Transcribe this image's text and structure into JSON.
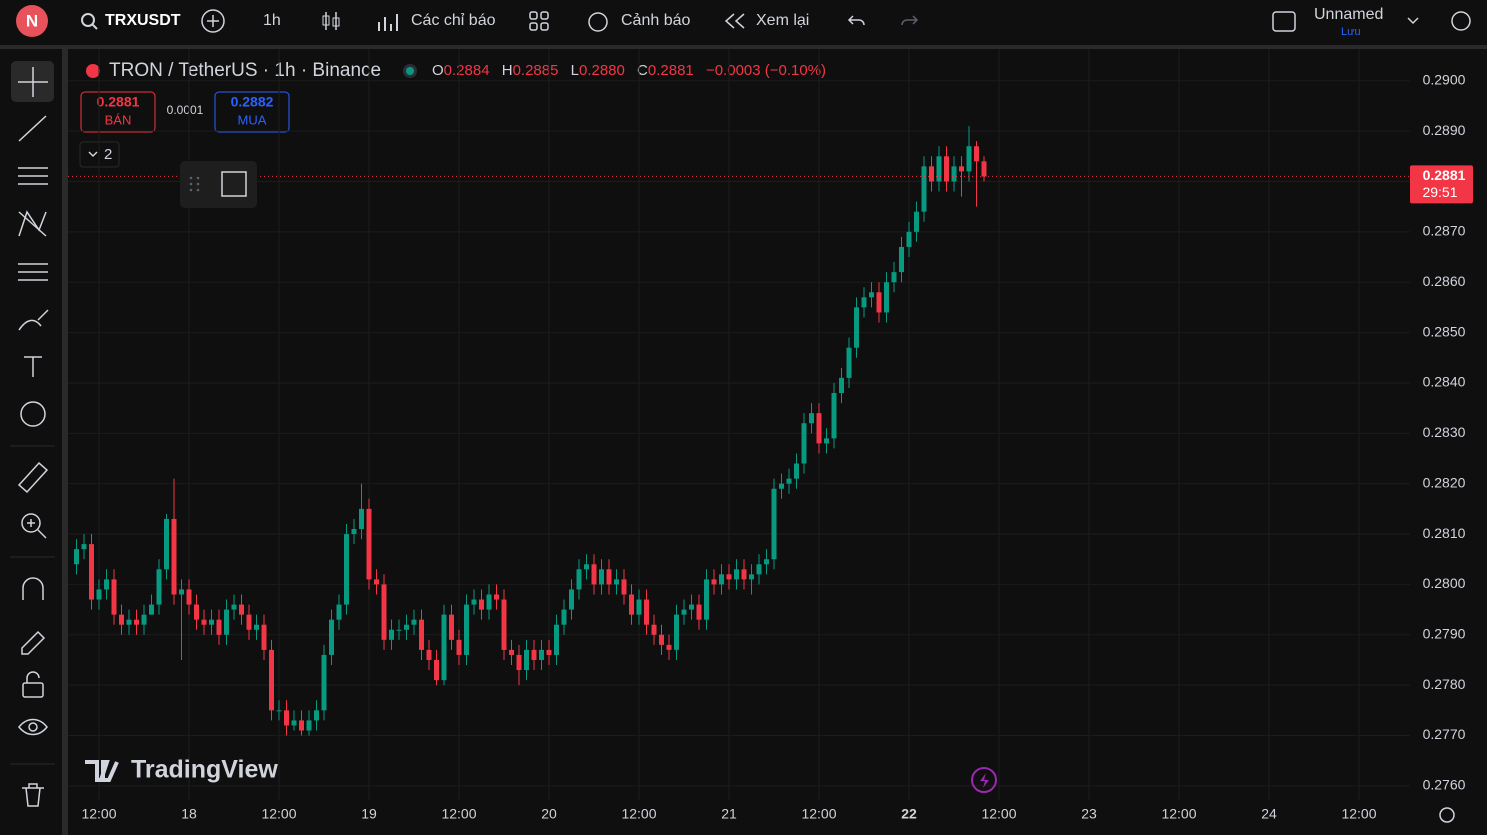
{
  "toolbar": {
    "avatar": "N",
    "symbol": "TRXUSDT",
    "interval": "1h",
    "indicators": "Các chỉ báo",
    "alerts": "Cảnh báo",
    "replay": "Xem lại",
    "layout_name": "Unnamed",
    "save": "Lưu"
  },
  "header": {
    "title": "TRON / TetherUS · 1h · Binance",
    "o_label": "O",
    "o": "0.2884",
    "h_label": "H",
    "h": "0.2885",
    "l_label": "L",
    "l": "0.2880",
    "c_label": "C",
    "c": "0.2881",
    "change": "−0.0003 (−0.10%)"
  },
  "trade": {
    "sell_price": "0.2881",
    "sell": "BÁN",
    "spread": "0.0001",
    "buy_price": "0.2882",
    "buy": "MUA",
    "lots": "2"
  },
  "watermark": "TradingView",
  "chart_data": {
    "type": "candlestick",
    "up_color": "#089981",
    "down_color": "#f23645",
    "grid": true,
    "ylim": [
      0.27572,
      0.29063
    ],
    "yticks": [
      {
        "value": 0.29,
        "label": "0.2900"
      },
      {
        "value": 0.289,
        "label": "0.2890"
      },
      {
        "value": 0.288,
        "label": "0.2880"
      },
      {
        "value": 0.287,
        "label": "0.2870"
      },
      {
        "value": 0.286,
        "label": "0.2860"
      },
      {
        "value": 0.285,
        "label": "0.2850"
      },
      {
        "value": 0.284,
        "label": "0.2840"
      },
      {
        "value": 0.283,
        "label": "0.2830"
      },
      {
        "value": 0.282,
        "label": "0.2820"
      },
      {
        "value": 0.281,
        "label": "0.2810"
      },
      {
        "value": 0.28,
        "label": "0.2800"
      },
      {
        "value": 0.279,
        "label": "0.2790"
      },
      {
        "value": 0.278,
        "label": "0.2780"
      },
      {
        "value": 0.277,
        "label": "0.2770"
      },
      {
        "value": 0.276,
        "label": "0.2760"
      }
    ],
    "xtick_labels": [
      "12:00",
      "18",
      "12:00",
      "19",
      "12:00",
      "20",
      "12:00",
      "21",
      "12:00",
      "22",
      "12:00",
      "23",
      "12:00",
      "24",
      "12:00"
    ],
    "last_price": {
      "value": 0.2881,
      "label": "0.2881",
      "countdown": "29:51"
    },
    "candles": [
      [
        0.2804,
        0.2809,
        0.2802,
        0.2807
      ],
      [
        0.2807,
        0.281,
        0.2805,
        0.2808
      ],
      [
        0.2808,
        0.281,
        0.2795,
        0.2797
      ],
      [
        0.2797,
        0.2801,
        0.2795,
        0.2799
      ],
      [
        0.2799,
        0.2803,
        0.2797,
        0.2801
      ],
      [
        0.2801,
        0.2803,
        0.2792,
        0.2794
      ],
      [
        0.2794,
        0.2796,
        0.279,
        0.2792
      ],
      [
        0.2792,
        0.2795,
        0.279,
        0.2793
      ],
      [
        0.2793,
        0.2795,
        0.279,
        0.2792
      ],
      [
        0.2792,
        0.2796,
        0.279,
        0.2794
      ],
      [
        0.2794,
        0.2798,
        0.2794,
        0.2796
      ],
      [
        0.2796,
        0.2805,
        0.2794,
        0.2803
      ],
      [
        0.2803,
        0.2814,
        0.2801,
        0.2813
      ],
      [
        0.2813,
        0.2821,
        0.2796,
        0.2798
      ],
      [
        0.2798,
        0.2801,
        0.2785,
        0.2799
      ],
      [
        0.2799,
        0.2801,
        0.2794,
        0.2796
      ],
      [
        0.2796,
        0.2798,
        0.2791,
        0.2793
      ],
      [
        0.2793,
        0.2795,
        0.279,
        0.2792
      ],
      [
        0.2792,
        0.2795,
        0.279,
        0.2793
      ],
      [
        0.2793,
        0.2795,
        0.2788,
        0.279
      ],
      [
        0.279,
        0.2797,
        0.2788,
        0.2795
      ],
      [
        0.2795,
        0.2798,
        0.2793,
        0.2796
      ],
      [
        0.2796,
        0.2798,
        0.2792,
        0.2794
      ],
      [
        0.2794,
        0.2796,
        0.2789,
        0.2791
      ],
      [
        0.2791,
        0.2794,
        0.2789,
        0.2792
      ],
      [
        0.2792,
        0.2794,
        0.2785,
        0.2787
      ],
      [
        0.2787,
        0.2789,
        0.2773,
        0.2775
      ],
      [
        0.2775,
        0.2777,
        0.2773,
        0.2775
      ],
      [
        0.2775,
        0.2777,
        0.277,
        0.2772
      ],
      [
        0.2772,
        0.2775,
        0.2771,
        0.2773
      ],
      [
        0.2773,
        0.2775,
        0.277,
        0.2771
      ],
      [
        0.2771,
        0.2775,
        0.277,
        0.2773
      ],
      [
        0.2773,
        0.2777,
        0.2771,
        0.2775
      ],
      [
        0.2775,
        0.2788,
        0.2773,
        0.2786
      ],
      [
        0.2786,
        0.2795,
        0.2784,
        0.2793
      ],
      [
        0.2793,
        0.2798,
        0.2791,
        0.2796
      ],
      [
        0.2796,
        0.2812,
        0.2794,
        0.281
      ],
      [
        0.281,
        0.2813,
        0.2808,
        0.2811
      ],
      [
        0.2811,
        0.282,
        0.2809,
        0.2815
      ],
      [
        0.2815,
        0.2817,
        0.2799,
        0.2801
      ],
      [
        0.2801,
        0.2803,
        0.2798,
        0.28
      ],
      [
        0.28,
        0.2802,
        0.2787,
        0.2789
      ],
      [
        0.2789,
        0.2793,
        0.2787,
        0.2791
      ],
      [
        0.2791,
        0.2793,
        0.2789,
        0.2791
      ],
      [
        0.2791,
        0.2794,
        0.2789,
        0.2792
      ],
      [
        0.2792,
        0.2795,
        0.279,
        0.2793
      ],
      [
        0.2793,
        0.2795,
        0.2785,
        0.2787
      ],
      [
        0.2787,
        0.2789,
        0.2783,
        0.2785
      ],
      [
        0.2785,
        0.2787,
        0.278,
        0.2781
      ],
      [
        0.2781,
        0.2796,
        0.278,
        0.2794
      ],
      [
        0.2794,
        0.2796,
        0.2787,
        0.2789
      ],
      [
        0.2789,
        0.2791,
        0.2784,
        0.2786
      ],
      [
        0.2786,
        0.2798,
        0.2784,
        0.2796
      ],
      [
        0.2796,
        0.2799,
        0.2794,
        0.2797
      ],
      [
        0.2797,
        0.2799,
        0.2793,
        0.2795
      ],
      [
        0.2795,
        0.28,
        0.2793,
        0.2798
      ],
      [
        0.2798,
        0.28,
        0.2795,
        0.2797
      ],
      [
        0.2797,
        0.2799,
        0.2785,
        0.2787
      ],
      [
        0.2787,
        0.2789,
        0.2784,
        0.2786
      ],
      [
        0.2786,
        0.2788,
        0.278,
        0.2783
      ],
      [
        0.2783,
        0.2789,
        0.2781,
        0.2787
      ],
      [
        0.2787,
        0.2789,
        0.2783,
        0.2785
      ],
      [
        0.2785,
        0.2789,
        0.2783,
        0.2787
      ],
      [
        0.2787,
        0.2789,
        0.2784,
        0.2786
      ],
      [
        0.2786,
        0.2794,
        0.2784,
        0.2792
      ],
      [
        0.2792,
        0.2797,
        0.279,
        0.2795
      ],
      [
        0.2795,
        0.2801,
        0.2793,
        0.2799
      ],
      [
        0.2799,
        0.2805,
        0.2797,
        0.2803
      ],
      [
        0.2803,
        0.2806,
        0.2801,
        0.2804
      ],
      [
        0.2804,
        0.2806,
        0.2798,
        0.28
      ],
      [
        0.28,
        0.2805,
        0.2798,
        0.2803
      ],
      [
        0.2803,
        0.2805,
        0.2798,
        0.28
      ],
      [
        0.28,
        0.2803,
        0.2798,
        0.2801
      ],
      [
        0.2801,
        0.2803,
        0.2796,
        0.2798
      ],
      [
        0.2798,
        0.28,
        0.2792,
        0.2794
      ],
      [
        0.2794,
        0.2799,
        0.2792,
        0.2797
      ],
      [
        0.2797,
        0.2799,
        0.279,
        0.2792
      ],
      [
        0.2792,
        0.2794,
        0.2788,
        0.279
      ],
      [
        0.279,
        0.2792,
        0.2786,
        0.2788
      ],
      [
        0.2788,
        0.279,
        0.2785,
        0.2787
      ],
      [
        0.2787,
        0.2796,
        0.2785,
        0.2794
      ],
      [
        0.2794,
        0.2797,
        0.2792,
        0.2795
      ],
      [
        0.2795,
        0.2798,
        0.2793,
        0.2796
      ],
      [
        0.2796,
        0.2798,
        0.2791,
        0.2793
      ],
      [
        0.2793,
        0.2803,
        0.2791,
        0.2801
      ],
      [
        0.2801,
        0.2803,
        0.2798,
        0.28
      ],
      [
        0.28,
        0.2804,
        0.2798,
        0.2802
      ],
      [
        0.2802,
        0.2804,
        0.2799,
        0.2801
      ],
      [
        0.2801,
        0.2805,
        0.2799,
        0.2803
      ],
      [
        0.2803,
        0.2805,
        0.2799,
        0.2801
      ],
      [
        0.2801,
        0.2804,
        0.2798,
        0.2802
      ],
      [
        0.2802,
        0.2806,
        0.28,
        0.2804
      ],
      [
        0.2804,
        0.2807,
        0.2802,
        0.2805
      ],
      [
        0.2805,
        0.2821,
        0.2803,
        0.2819
      ],
      [
        0.2819,
        0.2822,
        0.2817,
        0.282
      ],
      [
        0.282,
        0.2823,
        0.2818,
        0.2821
      ],
      [
        0.2821,
        0.2826,
        0.2819,
        0.2824
      ],
      [
        0.2824,
        0.2834,
        0.2822,
        0.2832
      ],
      [
        0.2832,
        0.2836,
        0.283,
        0.2834
      ],
      [
        0.2834,
        0.2836,
        0.2826,
        0.2828
      ],
      [
        0.2828,
        0.2831,
        0.2826,
        0.2829
      ],
      [
        0.2829,
        0.284,
        0.2827,
        0.2838
      ],
      [
        0.2838,
        0.2843,
        0.2836,
        0.2841
      ],
      [
        0.2841,
        0.2849,
        0.2839,
        0.2847
      ],
      [
        0.2847,
        0.2857,
        0.2845,
        0.2855
      ],
      [
        0.2855,
        0.2859,
        0.2853,
        0.2857
      ],
      [
        0.2857,
        0.286,
        0.2855,
        0.2858
      ],
      [
        0.2858,
        0.286,
        0.2852,
        0.2854
      ],
      [
        0.2854,
        0.2862,
        0.2852,
        0.286
      ],
      [
        0.286,
        0.2864,
        0.2858,
        0.2862
      ],
      [
        0.2862,
        0.2869,
        0.286,
        0.2867
      ],
      [
        0.2867,
        0.2872,
        0.2865,
        0.287
      ],
      [
        0.287,
        0.2876,
        0.2868,
        0.2874
      ],
      [
        0.2874,
        0.2885,
        0.2872,
        0.2883
      ],
      [
        0.2883,
        0.2885,
        0.2878,
        0.288
      ],
      [
        0.288,
        0.2887,
        0.2878,
        0.2885
      ],
      [
        0.2885,
        0.2887,
        0.2878,
        0.288
      ],
      [
        0.288,
        0.2885,
        0.2878,
        0.2883
      ],
      [
        0.2883,
        0.2885,
        0.2877,
        0.2882
      ],
      [
        0.2882,
        0.2891,
        0.288,
        0.2887
      ],
      [
        0.2887,
        0.2888,
        0.2875,
        0.2884
      ],
      [
        0.2884,
        0.2885,
        0.288,
        0.2881
      ]
    ]
  }
}
